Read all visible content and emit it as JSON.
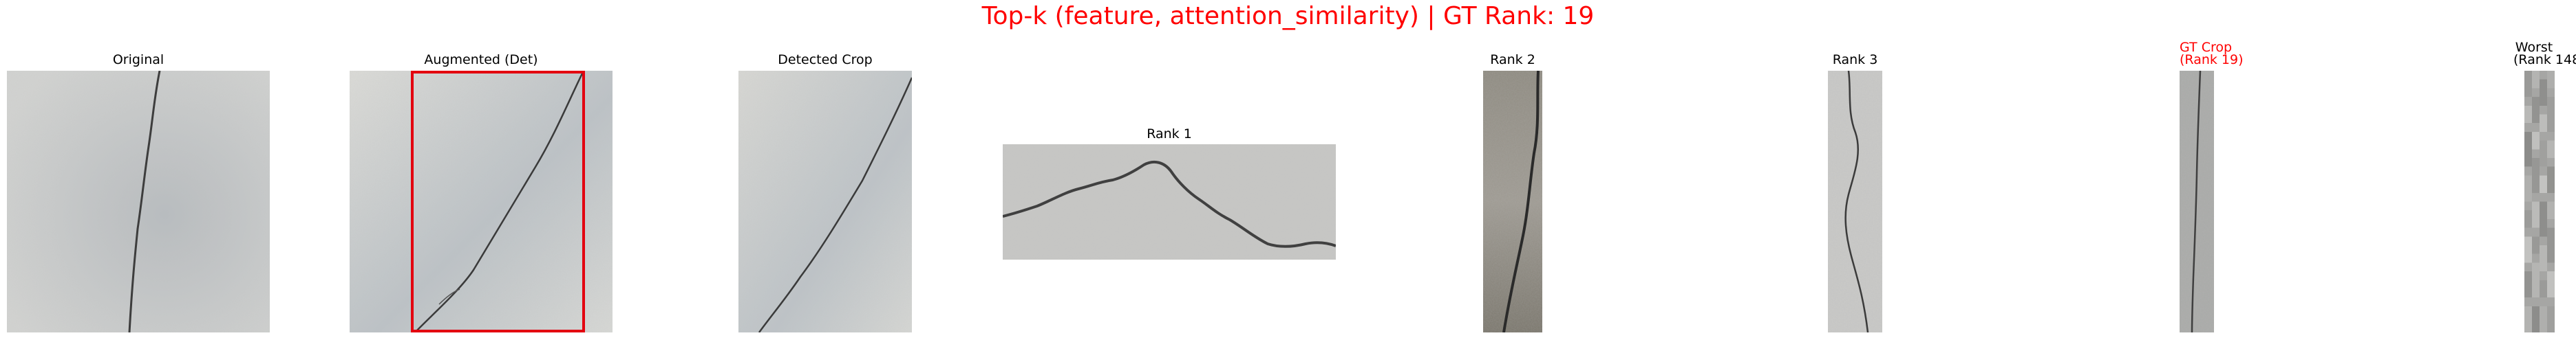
{
  "figure": {
    "suptitle": "Top-k (feature, attention_similarity) | GT Rank: 19",
    "title_color": "#ff0000",
    "bbox_color": "#e3000f"
  },
  "panels": [
    {
      "title": "Original"
    },
    {
      "title": "Augmented (Det)"
    },
    {
      "title": "Detected Crop"
    },
    {
      "title": "Rank 1"
    },
    {
      "title": "Rank 2"
    },
    {
      "title": "Rank 3"
    },
    {
      "title_line1": "GT Crop",
      "title_line2": "(Rank 19)"
    },
    {
      "title_line1": "Worst",
      "title_line2": "(Rank 148)"
    }
  ]
}
